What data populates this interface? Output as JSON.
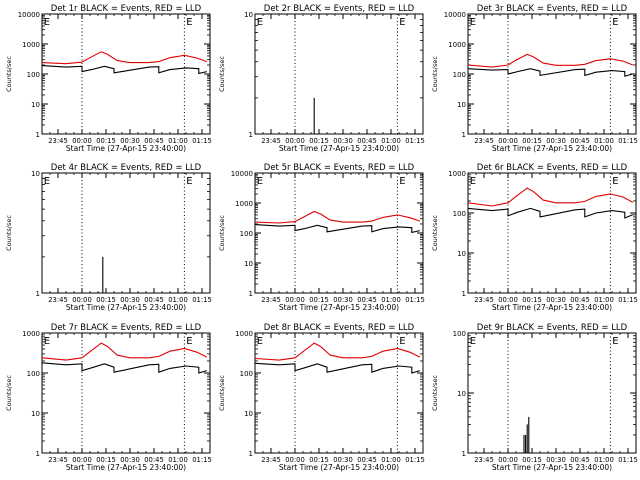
{
  "series_colors": {
    "events": "#000000",
    "lld": "#e00000"
  },
  "chart_data": [
    {
      "type": "line",
      "title": "Det 1r BLACK = Events, RED = LLD",
      "ylabel": "Counts/sec",
      "xlabel": "Start Time (27-Apr-15 23:40:00)",
      "y_scale": "log",
      "ylim": [
        1,
        10000
      ],
      "y_ticks": [
        1,
        10,
        100,
        1000,
        10000
      ],
      "y_tick_labels": [
        "1",
        "10",
        "100",
        "1000",
        "10000"
      ],
      "xlim": [
        -5,
        100
      ],
      "x_ticks": [
        5,
        20,
        35,
        50,
        65,
        80,
        95
      ],
      "x_tick_labels": [
        "23:45",
        "00:00",
        "00:15",
        "00:30",
        "00:45",
        "01:00",
        "01:15"
      ],
      "vlines": [
        20,
        84
      ],
      "markers": [
        {
          "label": "E",
          "x": -4.5
        },
        {
          "label": "E",
          "x": 84.5
        }
      ],
      "series": [
        {
          "key": "events",
          "x": [
            -5,
            10,
            20,
            20,
            26,
            34,
            40,
            40,
            62,
            68,
            68,
            75,
            85,
            93,
            93,
            98
          ],
          "values": [
            190,
            170,
            180,
            120,
            140,
            180,
            150,
            110,
            170,
            175,
            110,
            140,
            160,
            150,
            105,
            120
          ]
        },
        {
          "key": "lld",
          "x": [
            -5,
            10,
            20,
            25,
            32,
            36,
            42,
            50,
            62,
            68,
            75,
            84,
            92,
            98
          ],
          "values": [
            240,
            220,
            250,
            350,
            550,
            450,
            280,
            240,
            240,
            260,
            350,
            420,
            340,
            260
          ]
        }
      ]
    },
    {
      "type": "line",
      "title": "Det 2r BLACK = Events, RED = LLD",
      "ylabel": "Counts/sec",
      "xlabel": "Start Time (27-Apr-15 23:40:00)",
      "y_scale": "log",
      "ylim": [
        1,
        10
      ],
      "y_ticks": [
        1,
        10
      ],
      "y_tick_labels": [
        "1",
        "10"
      ],
      "xlim": [
        -5,
        100
      ],
      "x_ticks": [
        5,
        20,
        35,
        50,
        65,
        80,
        95
      ],
      "x_tick_labels": [
        "23:45",
        "00:00",
        "00:15",
        "00:30",
        "00:45",
        "01:00",
        "01:15"
      ],
      "vlines": [
        20,
        84
      ],
      "markers": [
        {
          "label": "E",
          "x": -4.5
        },
        {
          "label": "E",
          "x": 84.5
        }
      ],
      "series": [
        {
          "key": "events",
          "x": [
            32,
            32,
            32
          ],
          "values": [
            1,
            2,
            1
          ]
        }
      ]
    },
    {
      "type": "line",
      "title": "Det 3r BLACK = Events, RED = LLD",
      "ylabel": "Counts/sec",
      "xlabel": "Start Time (27-Apr-15 23:40:00)",
      "y_scale": "log",
      "ylim": [
        1,
        10000
      ],
      "y_ticks": [
        1,
        10,
        100,
        1000,
        10000
      ],
      "y_tick_labels": [
        "1",
        "10",
        "100",
        "1000",
        "10000"
      ],
      "xlim": [
        -5,
        100
      ],
      "x_ticks": [
        5,
        20,
        35,
        50,
        65,
        80,
        95
      ],
      "x_tick_labels": [
        "23:45",
        "00:00",
        "00:15",
        "00:30",
        "00:45",
        "01:00",
        "01:15"
      ],
      "vlines": [
        20,
        84
      ],
      "markers": [
        {
          "label": "E",
          "x": -4.5
        },
        {
          "label": "E",
          "x": 84.5
        }
      ],
      "series": [
        {
          "key": "events",
          "x": [
            -5,
            10,
            20,
            20,
            26,
            34,
            40,
            40,
            62,
            68,
            68,
            75,
            85,
            93,
            93,
            98
          ],
          "values": [
            150,
            135,
            140,
            100,
            120,
            150,
            125,
            90,
            140,
            145,
            90,
            115,
            130,
            120,
            85,
            100
          ]
        },
        {
          "key": "lld",
          "x": [
            -5,
            10,
            20,
            25,
            32,
            36,
            42,
            50,
            62,
            68,
            75,
            84,
            92,
            98
          ],
          "values": [
            200,
            170,
            200,
            290,
            450,
            370,
            230,
            195,
            195,
            210,
            280,
            320,
            270,
            200
          ]
        }
      ]
    },
    {
      "type": "line",
      "title": "Det 4r BLACK = Events, RED = LLD",
      "ylabel": "Counts/sec",
      "xlabel": "Start Time (27-Apr-15 23:40:00)",
      "y_scale": "log",
      "ylim": [
        1,
        10
      ],
      "y_ticks": [
        1,
        10
      ],
      "y_tick_labels": [
        "1",
        "10"
      ],
      "xlim": [
        -5,
        100
      ],
      "x_ticks": [
        5,
        20,
        35,
        50,
        65,
        80,
        95
      ],
      "x_tick_labels": [
        "23:45",
        "00:00",
        "00:15",
        "00:30",
        "00:45",
        "01:00",
        "01:15"
      ],
      "vlines": [
        20,
        84
      ],
      "markers": [
        {
          "label": "E",
          "x": -4.5
        },
        {
          "label": "E",
          "x": 84.5
        }
      ],
      "series": [
        {
          "key": "events",
          "x": [
            33,
            33,
            33
          ],
          "values": [
            1,
            2,
            1
          ]
        }
      ]
    },
    {
      "type": "line",
      "title": "Det 5r BLACK = Events, RED = LLD",
      "ylabel": "Counts/sec",
      "xlabel": "Start Time (27-Apr-15 23:40:00)",
      "y_scale": "log",
      "ylim": [
        1,
        10000
      ],
      "y_ticks": [
        1,
        10,
        100,
        1000,
        10000
      ],
      "y_tick_labels": [
        "1",
        "10",
        "100",
        "1000",
        "10000"
      ],
      "xlim": [
        -5,
        100
      ],
      "x_ticks": [
        5,
        20,
        35,
        50,
        65,
        80,
        95
      ],
      "x_tick_labels": [
        "23:45",
        "00:00",
        "00:15",
        "00:30",
        "00:45",
        "01:00",
        "01:15"
      ],
      "vlines": [
        20,
        84
      ],
      "markers": [
        {
          "label": "E",
          "x": -4.5
        },
        {
          "label": "E",
          "x": 84.5
        }
      ],
      "series": [
        {
          "key": "events",
          "x": [
            -5,
            10,
            20,
            20,
            26,
            34,
            40,
            40,
            62,
            68,
            68,
            75,
            85,
            93,
            93,
            98
          ],
          "values": [
            190,
            170,
            180,
            120,
            140,
            180,
            150,
            110,
            170,
            175,
            110,
            140,
            160,
            150,
            105,
            120
          ]
        },
        {
          "key": "lld",
          "x": [
            -5,
            10,
            20,
            25,
            32,
            36,
            42,
            50,
            62,
            68,
            75,
            84,
            92,
            98
          ],
          "values": [
            230,
            215,
            240,
            330,
            520,
            430,
            270,
            230,
            230,
            250,
            330,
            400,
            320,
            250
          ]
        }
      ]
    },
    {
      "type": "line",
      "title": "Det 6r BLACK = Events, RED = LLD",
      "ylabel": "Counts/sec",
      "xlabel": "Start Time (27-Apr-15 23:40:00)",
      "y_scale": "log",
      "ylim": [
        1,
        1000
      ],
      "y_ticks": [
        1,
        10,
        100,
        1000
      ],
      "y_tick_labels": [
        "1",
        "10",
        "100",
        "1000"
      ],
      "xlim": [
        -5,
        100
      ],
      "x_ticks": [
        5,
        20,
        35,
        50,
        65,
        80,
        95
      ],
      "x_tick_labels": [
        "23:45",
        "00:00",
        "00:15",
        "00:30",
        "00:45",
        "01:00",
        "01:15"
      ],
      "vlines": [
        20,
        84
      ],
      "markers": [
        {
          "label": "E",
          "x": -4.5
        },
        {
          "label": "E",
          "x": 84.5
        }
      ],
      "series": [
        {
          "key": "events",
          "x": [
            -5,
            10,
            20,
            20,
            26,
            34,
            40,
            40,
            62,
            68,
            68,
            75,
            85,
            93,
            93,
            98
          ],
          "values": [
            130,
            115,
            125,
            85,
            105,
            130,
            110,
            80,
            120,
            125,
            80,
            100,
            115,
            105,
            75,
            90
          ]
        },
        {
          "key": "lld",
          "x": [
            -5,
            10,
            20,
            25,
            32,
            36,
            42,
            50,
            62,
            68,
            75,
            84,
            92,
            98
          ],
          "values": [
            180,
            150,
            180,
            260,
            420,
            340,
            210,
            180,
            180,
            195,
            260,
            300,
            250,
            185
          ]
        }
      ]
    },
    {
      "type": "line",
      "title": "Det 7r BLACK = Events, RED = LLD",
      "ylabel": "Counts/sec",
      "xlabel": "Start Time (27-Apr-15 23:40:00)",
      "y_scale": "log",
      "ylim": [
        1,
        1000
      ],
      "y_ticks": [
        1,
        10,
        100,
        1000
      ],
      "y_tick_labels": [
        "1",
        "10",
        "100",
        "1000"
      ],
      "xlim": [
        -5,
        100
      ],
      "x_ticks": [
        5,
        20,
        35,
        50,
        65,
        80,
        95
      ],
      "x_tick_labels": [
        "23:45",
        "00:00",
        "00:15",
        "00:30",
        "00:45",
        "01:00",
        "01:15"
      ],
      "vlines": [
        20,
        84
      ],
      "markers": [
        {
          "label": "E",
          "x": -4.5
        },
        {
          "label": "E",
          "x": 84.5
        }
      ],
      "series": [
        {
          "key": "events",
          "x": [
            -5,
            10,
            20,
            20,
            26,
            34,
            40,
            40,
            62,
            68,
            68,
            75,
            85,
            93,
            93,
            98
          ],
          "values": [
            180,
            160,
            170,
            115,
            135,
            170,
            140,
            105,
            160,
            165,
            105,
            130,
            150,
            140,
            100,
            115
          ]
        },
        {
          "key": "lld",
          "x": [
            -5,
            10,
            20,
            25,
            32,
            36,
            42,
            50,
            62,
            68,
            75,
            84,
            92,
            98
          ],
          "values": [
            240,
            210,
            240,
            340,
            560,
            460,
            280,
            240,
            240,
            260,
            350,
            410,
            330,
            250
          ]
        }
      ]
    },
    {
      "type": "line",
      "title": "Det 8r BLACK = Events, RED = LLD",
      "ylabel": "Counts/sec",
      "xlabel": "Start Time (27-Apr-15 23:40:00)",
      "y_scale": "log",
      "ylim": [
        1,
        1000
      ],
      "y_ticks": [
        1,
        10,
        100,
        1000
      ],
      "y_tick_labels": [
        "1",
        "10",
        "100",
        "1000"
      ],
      "xlim": [
        -5,
        100
      ],
      "x_ticks": [
        5,
        20,
        35,
        50,
        65,
        80,
        95
      ],
      "x_tick_labels": [
        "23:45",
        "00:00",
        "00:15",
        "00:30",
        "00:45",
        "01:00",
        "01:15"
      ],
      "vlines": [
        20,
        84
      ],
      "markers": [
        {
          "label": "E",
          "x": -4.5
        },
        {
          "label": "E",
          "x": 84.5
        }
      ],
      "series": [
        {
          "key": "events",
          "x": [
            -5,
            10,
            20,
            20,
            26,
            34,
            40,
            40,
            62,
            68,
            68,
            75,
            85,
            93,
            93,
            98
          ],
          "values": [
            175,
            160,
            170,
            115,
            135,
            170,
            140,
            105,
            160,
            165,
            105,
            130,
            150,
            140,
            100,
            115
          ]
        },
        {
          "key": "lld",
          "x": [
            -5,
            10,
            20,
            25,
            32,
            36,
            42,
            50,
            62,
            68,
            75,
            84,
            92,
            98
          ],
          "values": [
            230,
            210,
            240,
            340,
            560,
            460,
            280,
            240,
            240,
            260,
            350,
            410,
            330,
            250
          ]
        }
      ]
    },
    {
      "type": "line",
      "title": "Det 9r BLACK = Events, RED = LLD",
      "ylabel": "Counts/sec",
      "xlabel": "Start Time (27-Apr-15 23:40:00)",
      "y_scale": "log",
      "ylim": [
        1,
        100
      ],
      "y_ticks": [
        1,
        10,
        100
      ],
      "y_tick_labels": [
        "1",
        "10",
        "100"
      ],
      "xlim": [
        -5,
        100
      ],
      "x_ticks": [
        5,
        20,
        35,
        50,
        65,
        80,
        95
      ],
      "x_tick_labels": [
        "23:45",
        "00:00",
        "00:15",
        "00:30",
        "00:45",
        "01:00",
        "01:15"
      ],
      "vlines": [
        20,
        84
      ],
      "markers": [
        {
          "label": "E",
          "x": -4.5
        },
        {
          "label": "E",
          "x": 84.5
        }
      ],
      "series": [
        {
          "key": "events",
          "x": [
            30,
            30,
            30,
            31,
            31,
            31,
            32,
            32,
            32,
            33,
            33,
            33
          ],
          "values": [
            1,
            2,
            1,
            1,
            2,
            1,
            1,
            3,
            1,
            1,
            4,
            1
          ]
        }
      ]
    }
  ]
}
